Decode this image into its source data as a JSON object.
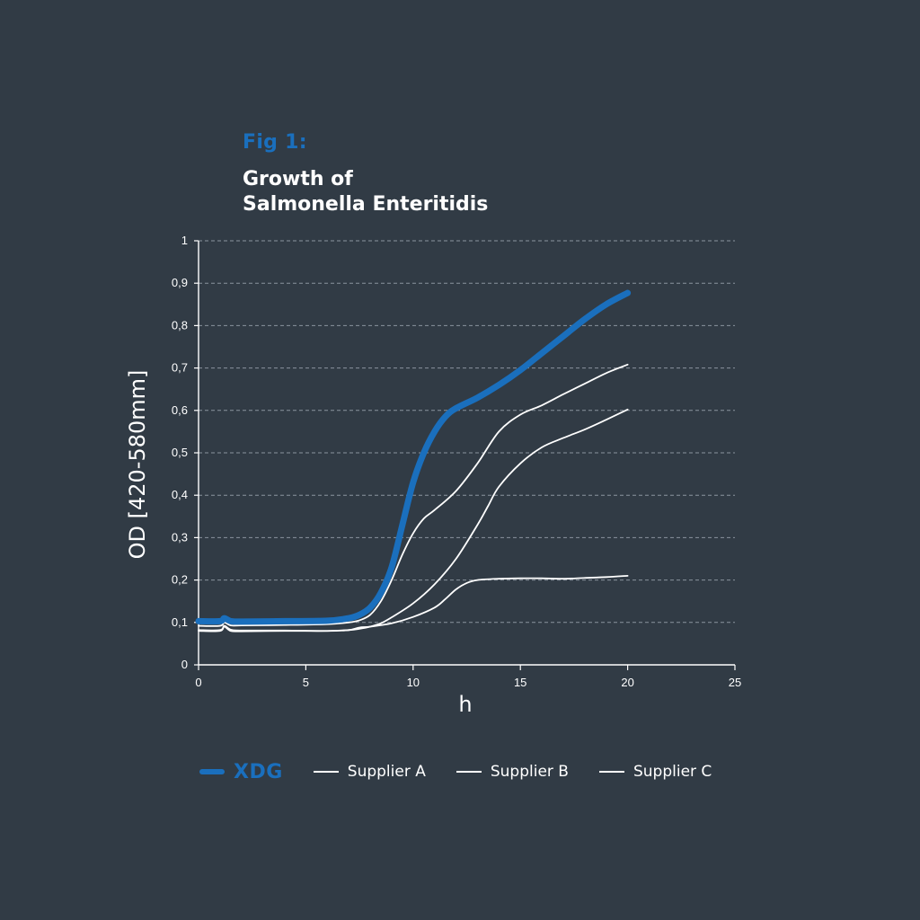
{
  "fig_label": "Fig 1:",
  "title_lines": [
    "Growth of",
    "Salmonella Enteritidis"
  ],
  "colors": {
    "background": "#313b45",
    "accent": "#1a6fbd",
    "line": "#ffffff",
    "grid": "#8a949e"
  },
  "chart_data": {
    "type": "line",
    "xlabel": "h",
    "ylabel": "OD [420-580mm]",
    "xlim": [
      0,
      25
    ],
    "ylim": [
      0,
      1
    ],
    "x_ticks": [
      "0",
      "5",
      "10",
      "15",
      "20",
      "25"
    ],
    "y_ticks": [
      "0",
      "0,1",
      "0,2",
      "0,3",
      "0,4",
      "0,5",
      "0,6",
      "0,7",
      "0,8",
      "0,9",
      "1"
    ],
    "grid": "horizontal dashed",
    "legend_position": "bottom",
    "series": [
      {
        "name": "XDG",
        "highlight": true,
        "color": "#1a6fbd",
        "x": [
          0,
          1,
          1.2,
          1.5,
          2,
          4,
          6,
          7,
          7.5,
          8,
          8.5,
          9,
          9.5,
          10,
          10.5,
          11,
          11.5,
          12,
          13,
          14,
          15,
          16,
          17,
          18,
          19,
          20
        ],
        "y": [
          0.103,
          0.103,
          0.11,
          0.103,
          0.102,
          0.103,
          0.104,
          0.11,
          0.118,
          0.135,
          0.17,
          0.23,
          0.33,
          0.43,
          0.5,
          0.55,
          0.585,
          0.605,
          0.63,
          0.66,
          0.695,
          0.735,
          0.775,
          0.815,
          0.85,
          0.877
        ]
      },
      {
        "name": "Supplier A",
        "color": "#ffffff",
        "x": [
          0,
          1,
          1.2,
          1.5,
          2,
          4,
          6,
          7,
          7.5,
          8,
          8.5,
          9,
          9.5,
          10,
          10.5,
          11,
          12,
          13,
          14,
          15,
          16,
          17,
          18,
          19,
          20
        ],
        "y": [
          0.092,
          0.092,
          0.1,
          0.093,
          0.093,
          0.094,
          0.096,
          0.1,
          0.105,
          0.118,
          0.15,
          0.2,
          0.26,
          0.31,
          0.345,
          0.365,
          0.41,
          0.475,
          0.55,
          0.59,
          0.612,
          0.638,
          0.663,
          0.688,
          0.708
        ]
      },
      {
        "name": "Supplier B",
        "color": "#ffffff",
        "x": [
          0,
          1,
          1.2,
          1.5,
          2,
          4,
          6,
          7,
          7.5,
          8,
          8.5,
          9,
          10,
          11,
          12,
          13,
          13.5,
          14,
          15,
          16,
          17,
          18,
          19,
          20
        ],
        "y": [
          0.08,
          0.08,
          0.09,
          0.08,
          0.079,
          0.08,
          0.08,
          0.082,
          0.085,
          0.09,
          0.098,
          0.112,
          0.145,
          0.19,
          0.25,
          0.33,
          0.375,
          0.42,
          0.475,
          0.513,
          0.535,
          0.555,
          0.578,
          0.602
        ]
      },
      {
        "name": "Supplier C",
        "color": "#ffffff",
        "x": [
          0,
          1,
          1.2,
          1.5,
          2,
          4,
          6,
          7,
          7.5,
          8,
          9,
          10,
          11,
          11.5,
          12,
          12.5,
          13,
          14,
          15,
          16,
          17,
          18,
          19,
          20
        ],
        "y": [
          0.082,
          0.082,
          0.092,
          0.083,
          0.081,
          0.081,
          0.08,
          0.082,
          0.088,
          0.09,
          0.098,
          0.113,
          0.135,
          0.155,
          0.178,
          0.193,
          0.2,
          0.203,
          0.204,
          0.204,
          0.203,
          0.205,
          0.207,
          0.21
        ]
      }
    ]
  }
}
